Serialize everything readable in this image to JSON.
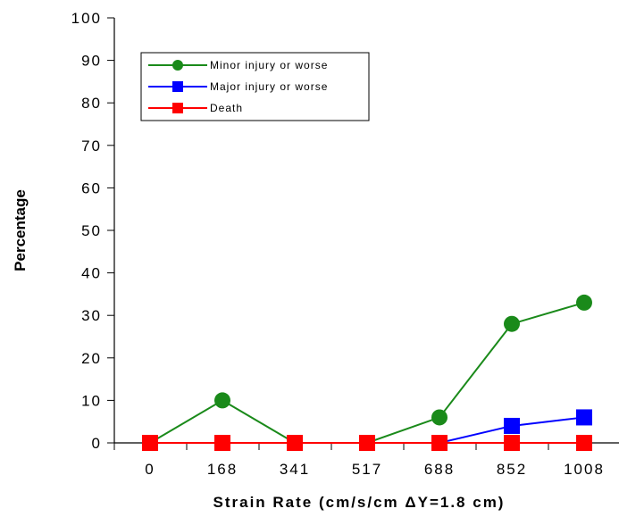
{
  "chart_data": {
    "type": "line",
    "categories": [
      "0",
      "168",
      "341",
      "517",
      "688",
      "852",
      "1008"
    ],
    "xlabel": "Strain Rate (cm/s/cm ΔY=1.8 cm)",
    "ylabel": "Percentage",
    "ylim": [
      0,
      100
    ],
    "yticks": [
      "0",
      "10",
      "20",
      "30",
      "40",
      "50",
      "60",
      "70",
      "80",
      "90",
      "100"
    ],
    "grid": false,
    "legend_position": "top-left",
    "series": [
      {
        "name": "Minor injury or worse",
        "color": "#1a8a1a",
        "marker": "circle",
        "values": [
          0,
          10,
          0,
          0,
          6,
          28,
          33
        ]
      },
      {
        "name": "Major injury or worse",
        "color": "#0000ff",
        "marker": "square",
        "values": [
          0,
          0,
          0,
          0,
          0,
          4,
          6
        ]
      },
      {
        "name": "Death",
        "color": "#ff0000",
        "marker": "square",
        "values": [
          0,
          0,
          0,
          0,
          0,
          0,
          0
        ]
      }
    ]
  }
}
